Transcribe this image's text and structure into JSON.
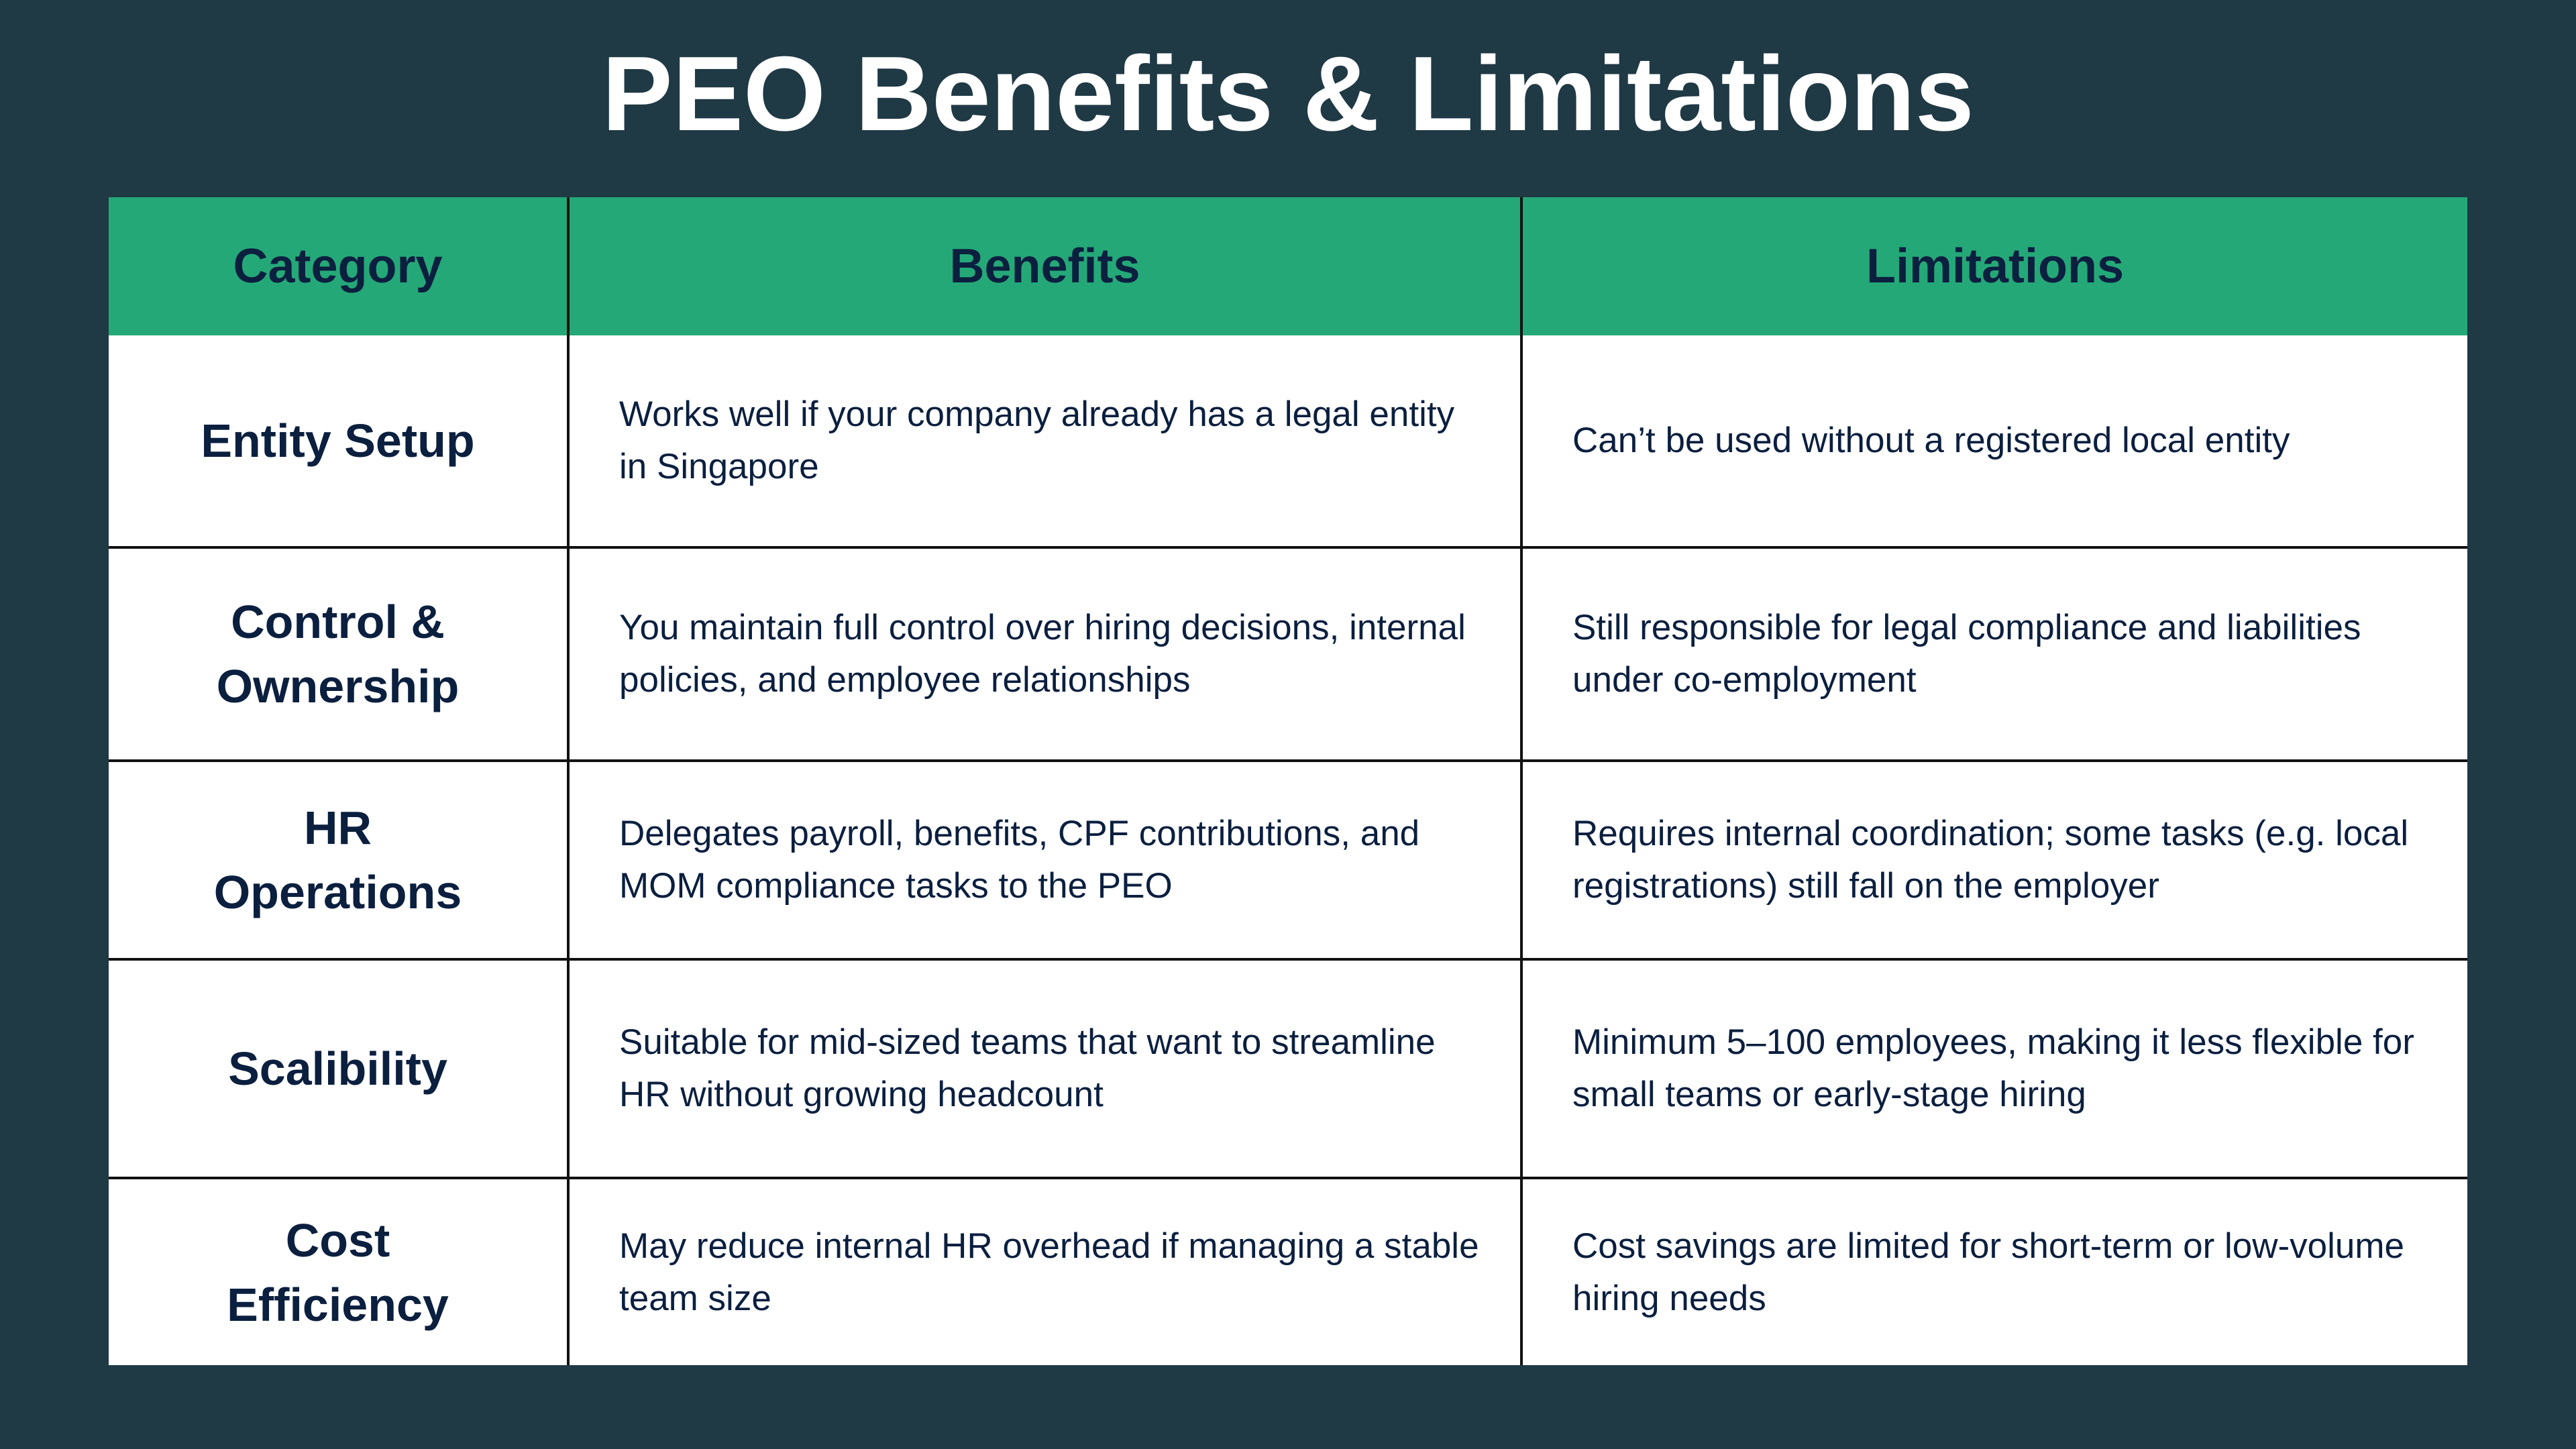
{
  "title": "PEO Benefits & Limitations",
  "colors": {
    "background": "#1f3945",
    "header": "#25a878",
    "text": "#0b1f3f"
  },
  "table": {
    "headers": [
      "Category",
      "Benefits",
      "Limitations"
    ],
    "rows": [
      {
        "category": "Entity Setup",
        "benefits": "Works well if your company already has a legal entity in Singapore",
        "limitations": "Can’t be used without a registered local entity"
      },
      {
        "category": "Control & Ownership",
        "benefits": "You maintain full control over hiring decisions, internal policies, and employee relationships",
        "limitations": "Still responsible for legal compliance and liabilities under co-employment"
      },
      {
        "category": "HR Operations",
        "benefits": "Delegates payroll, benefits, CPF contributions, and MOM compliance tasks to the PEO",
        "limitations": "Requires internal coordination; some tasks (e.g. local registrations) still fall on the employer"
      },
      {
        "category": "Scalibility",
        "benefits": "Suitable for mid-sized teams that want to streamline HR without growing headcount",
        "limitations": "Minimum 5–100 employees, making it less flexible for small teams or early-stage hiring"
      },
      {
        "category": "Cost Efficiency",
        "benefits": "May reduce internal HR overhead if managing a stable team size",
        "limitations": "Cost savings are limited for short-term or low-volume hiring needs"
      }
    ]
  }
}
